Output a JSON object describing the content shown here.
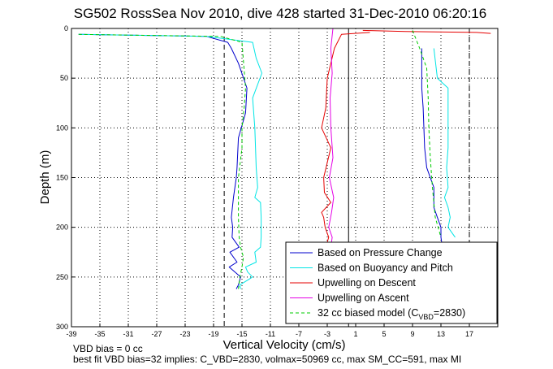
{
  "chart_data": {
    "type": "line",
    "title": "SG502 RossSea Nov 2010, dive 428 started 31-Dec-2010 06:20:16",
    "xlabel": "Vertical Velocity (cm/s)",
    "ylabel": "Depth (m)",
    "xlim": [
      -39,
      21
    ],
    "ylim": [
      0,
      300
    ],
    "y_reversed": true,
    "xticks": [
      -39,
      -35,
      -31,
      -27,
      -23,
      -19,
      -15,
      -11,
      -7,
      -3,
      1,
      5,
      9,
      13,
      17
    ],
    "yticks": [
      0,
      50,
      100,
      150,
      200,
      250,
      300
    ],
    "grid": true,
    "legend_position": "lower-right",
    "legend": [
      "Based on Pressure Change",
      "Based on Buoyancy and Pitch",
      "Upwelling on Descent",
      "Upwelling on Ascent",
      "32 cc biased model (C_VBD=2830)"
    ],
    "legend_model_prefix": "32 cc biased model (C",
    "legend_model_sub": "VBD",
    "legend_model_suffix": "=2830)",
    "reference_lines": {
      "solid_x": 0,
      "dashed_x": [
        -17.5,
        17
      ]
    },
    "series": [
      {
        "name": "Based on Pressure Change",
        "color": "#0000cc",
        "style": "solid",
        "x": [
          -38,
          -20,
          -17,
          -16.5,
          -15.5,
          -14.3,
          -14.5,
          -15.5,
          -15.7,
          -15.8,
          -16.2,
          -16.5,
          -16.3,
          -16.4,
          -15.4,
          -16.7,
          -15.7,
          -16.8,
          -15.2,
          -15.5,
          -15.8
        ],
        "y": [
          6,
          8,
          14,
          20,
          35,
          60,
          85,
          110,
          140,
          150,
          170,
          190,
          200,
          210,
          220,
          225,
          235,
          240,
          250,
          258,
          262
        ]
      },
      {
        "name": "Based on Buoyancy and Pitch",
        "color": "#00e5e5",
        "style": "solid",
        "x": [
          -38,
          -20,
          -13.5,
          -13,
          -12.2,
          -13.5,
          -13.2,
          -13,
          -12.8,
          -13.2,
          -12.4,
          -12.3,
          -12.3,
          -12.4,
          -13.2,
          -13,
          -14.5,
          -14.2,
          -13.5,
          -15.3,
          -15.2
        ],
        "y": [
          6,
          8,
          14,
          30,
          45,
          70,
          100,
          140,
          160,
          170,
          175,
          190,
          210,
          220,
          225,
          235,
          240,
          245,
          250,
          258,
          262
        ]
      },
      {
        "name": "Upwelling on Descent",
        "color": "#e50000",
        "style": "solid",
        "x": [
          3,
          -1,
          -2,
          -3,
          -3.2,
          -3.8,
          -2.5,
          -3.5,
          -3.4,
          -2.5,
          -3.8,
          -3.5,
          -3.3,
          -2.8,
          -3
        ],
        "y": [
          4,
          6,
          20,
          50,
          80,
          100,
          120,
          150,
          165,
          175,
          185,
          190,
          200,
          210,
          215
        ]
      },
      {
        "name": "Upwelling on Ascent",
        "color": "#e500e5",
        "style": "solid",
        "x": [
          -2.2,
          -2.5,
          -2.3,
          -2.6,
          -2.5,
          -2.2,
          -2.7,
          -2.1,
          -2.4,
          -2.8,
          -2.3,
          -2.5,
          -2.4
        ],
        "y": [
          0,
          20,
          45,
          70,
          100,
          130,
          150,
          170,
          185,
          200,
          210,
          220,
          225
        ]
      },
      {
        "name": "Based on Pressure Change",
        "color": "#0000cc",
        "style": "solid",
        "x": [
          10.3,
          10.3,
          10.3,
          10.5,
          10.6,
          10.7,
          11,
          12,
          12,
          12.5,
          13,
          13,
          13.2
        ],
        "y": [
          20,
          40,
          60,
          80,
          100,
          120,
          140,
          160,
          180,
          190,
          200,
          210,
          220
        ]
      },
      {
        "name": "Based on Buoyancy and Pitch",
        "color": "#00e5e5",
        "style": "solid",
        "x": [
          12,
          12.5,
          14,
          14,
          14,
          14,
          13.8,
          14,
          13.5,
          14,
          14.3,
          14,
          15
        ],
        "y": [
          20,
          50,
          60,
          80,
          100,
          120,
          140,
          160,
          170,
          180,
          190,
          200,
          210
        ]
      },
      {
        "name": "Upwelling on Descent",
        "color": "#e50000",
        "style": "solid",
        "x": [
          2,
          8,
          18,
          20
        ],
        "y": [
          2,
          3,
          4,
          5
        ]
      },
      {
        "name": "32 cc biased model (C_VBD=2830)",
        "color": "#00cc00",
        "style": "dashed",
        "x": [
          -38,
          -18,
          -15,
          -14.5,
          -14.7,
          -15,
          -15,
          -15.5,
          -15.5,
          -15.4,
          -15.2,
          -14.8,
          -15,
          -15.3,
          -15.5
        ],
        "y": [
          6,
          8,
          14,
          60,
          80,
          100,
          120,
          150,
          190,
          210,
          220,
          230,
          240,
          250,
          262
        ]
      },
      {
        "name": "32 cc biased model (C_VBD=2830)",
        "color": "#00cc00",
        "style": "dashed",
        "x": [
          9,
          10,
          11,
          11.2,
          11.3,
          11.5,
          11.8,
          12.2,
          13
        ],
        "y": [
          2,
          20,
          40,
          70,
          100,
          130,
          160,
          190,
          210
        ]
      }
    ],
    "annotations": {
      "note1": "VBD bias = 0 cc",
      "note2": "best fit VBD bias=32 implies: C_VBD=2830, volmax=50969 cc, max SM_CC=591, max MI"
    }
  }
}
